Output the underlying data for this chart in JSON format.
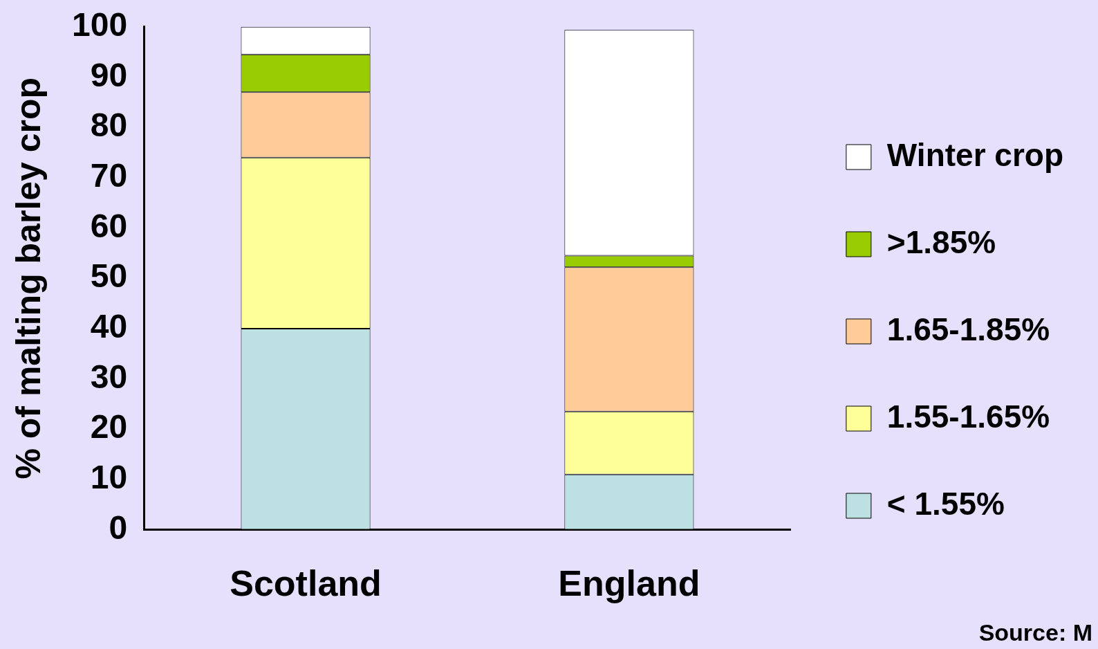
{
  "chart_data": {
    "type": "bar",
    "stacked": true,
    "ylabel": "% of malting barley crop",
    "categories": [
      "Scotland",
      "England"
    ],
    "series": [
      {
        "name": "< 1.55%",
        "color": "#bde0e3",
        "values": [
          40,
          11
        ]
      },
      {
        "name": "1.55-1.65%",
        "color": "#ffff99",
        "values": [
          34,
          12.5
        ]
      },
      {
        "name": "1.65-1.85%",
        "color": "#ffcc99",
        "values": [
          13,
          28.7
        ]
      },
      {
        "name": ">1.85%",
        "color": "#99cc00",
        "values": [
          7.5,
          2.3
        ]
      },
      {
        "name": "Winter crop",
        "color": "#ffffff",
        "values": [
          5.5,
          44.9
        ]
      }
    ],
    "ylim": [
      0,
      100
    ],
    "yticks": [
      0,
      10,
      20,
      30,
      40,
      50,
      60,
      70,
      80,
      90,
      100
    ],
    "grid": false,
    "legend": "right",
    "annotations": [
      "Source: M"
    ]
  }
}
